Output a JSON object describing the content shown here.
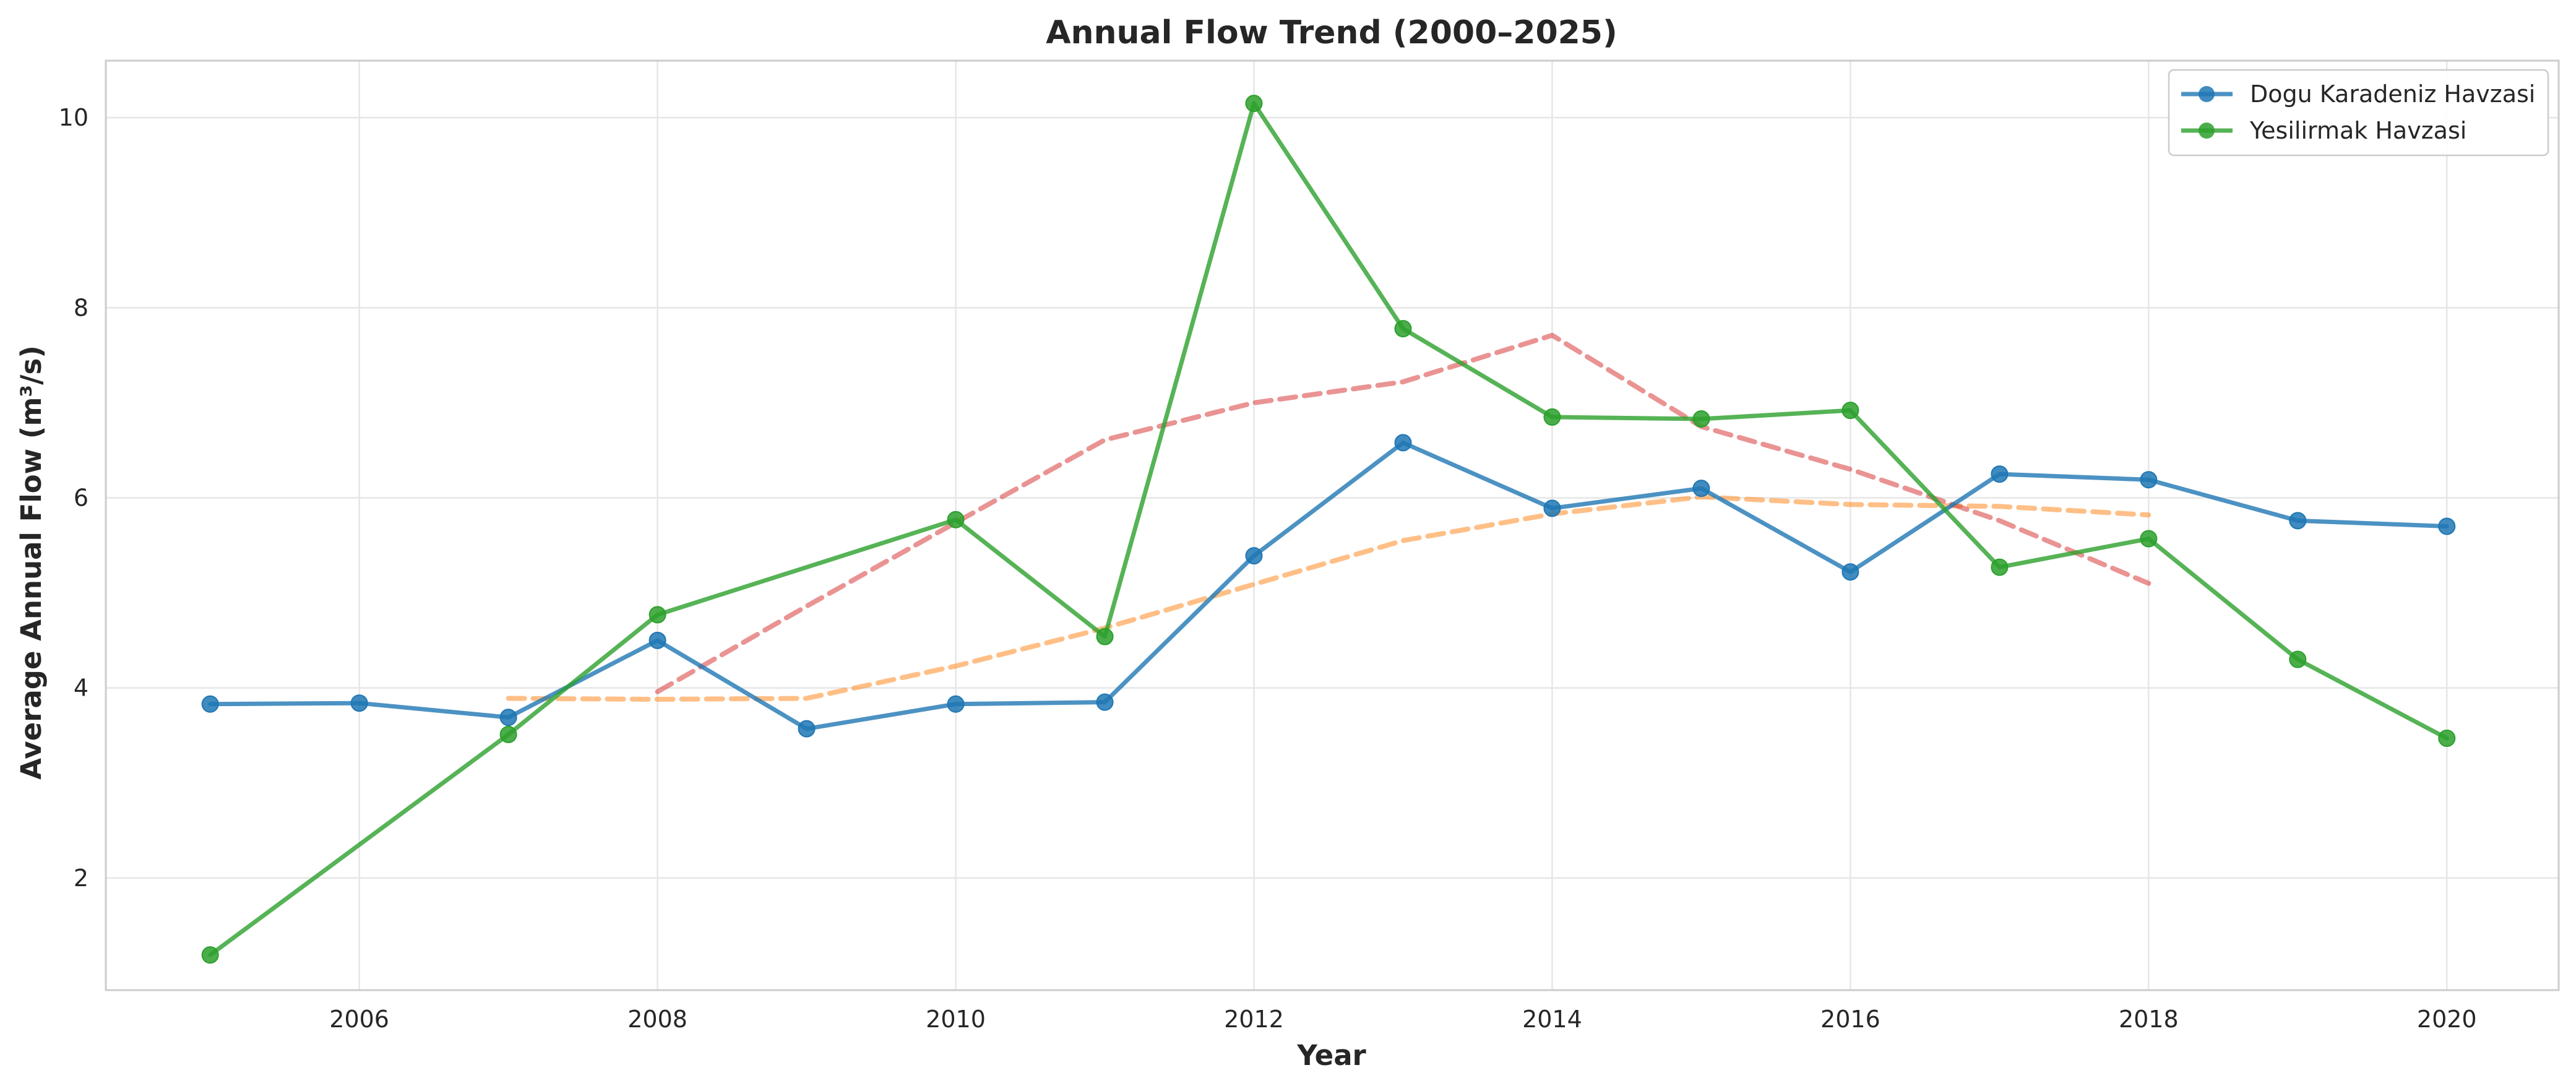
{
  "chart_data": {
    "type": "line",
    "title": "Annual Flow Trend (2000–2025)",
    "xlabel": "Year",
    "ylabel": "Average Annual Flow (m³/s)",
    "xlim": [
      2004.3,
      2020.75
    ],
    "ylim": [
      0.82,
      10.6
    ],
    "x_ticks": [
      2006,
      2008,
      2010,
      2012,
      2014,
      2016,
      2018,
      2020
    ],
    "y_ticks": [
      2,
      4,
      6,
      8,
      10
    ],
    "grid": true,
    "legend_position": "top-right",
    "series": [
      {
        "name": "Dogu Karadeniz Havzasi",
        "color": "#1f77b4",
        "style": "solid",
        "marker": "circle",
        "x": [
          2005,
          2006,
          2007,
          2008,
          2009,
          2010,
          2011,
          2012,
          2013,
          2014,
          2015,
          2016,
          2017,
          2018,
          2019,
          2020
        ],
        "y": [
          3.83,
          3.84,
          3.69,
          4.5,
          3.57,
          3.83,
          3.85,
          5.39,
          6.58,
          5.89,
          6.1,
          5.22,
          6.25,
          6.19,
          5.76,
          5.7
        ]
      },
      {
        "name": "Yesilirmak Havzasi",
        "color": "#2ca02c",
        "style": "solid",
        "marker": "circle",
        "x": [
          2005,
          2007,
          2008,
          2010,
          2011,
          2012,
          2013,
          2014,
          2015,
          2016,
          2017,
          2018,
          2019,
          2020
        ],
        "y": [
          1.19,
          3.51,
          4.77,
          5.77,
          4.54,
          10.15,
          7.78,
          6.85,
          6.83,
          6.92,
          5.27,
          5.57,
          4.3,
          3.47
        ]
      },
      {
        "color": "#ff7f0e",
        "style": "dashed",
        "x": [
          2007,
          2008,
          2009,
          2010,
          2011,
          2012,
          2013,
          2014,
          2015,
          2016,
          2017,
          2018
        ],
        "y": [
          3.89,
          3.88,
          3.89,
          4.23,
          4.63,
          5.09,
          5.55,
          5.83,
          6.01,
          5.93,
          5.91,
          5.82
        ]
      },
      {
        "color": "#d62728",
        "style": "dashed",
        "x": [
          2008,
          2009,
          2010,
          2011,
          2012,
          2013,
          2014,
          2015,
          2016,
          2017,
          2018
        ],
        "y": [
          3.96,
          4.86,
          5.74,
          6.61,
          7.0,
          7.22,
          7.71,
          6.75,
          6.3,
          5.76,
          5.1
        ]
      }
    ]
  }
}
